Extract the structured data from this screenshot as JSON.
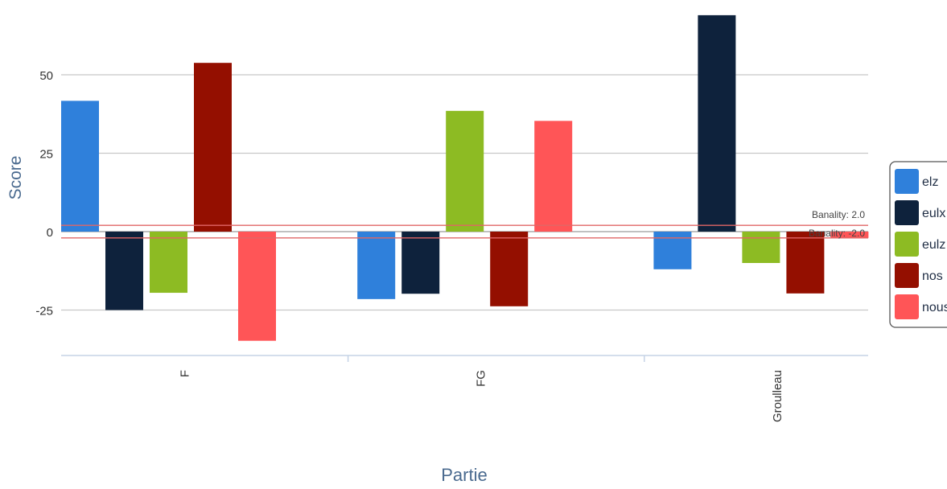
{
  "chart_data": {
    "type": "bar",
    "title": "",
    "xlabel": "Partie",
    "ylabel": "Score",
    "categories": [
      "F",
      "FG",
      "Groulleau"
    ],
    "yticks": [
      "50",
      "25",
      "0",
      "-25"
    ],
    "ylim": [
      -40,
      70
    ],
    "grid": true,
    "legend_position": "right",
    "series": [
      {
        "name": "elz",
        "color": "#2F80DB",
        "values": [
          41.7,
          -21.5,
          -12.0
        ]
      },
      {
        "name": "eulx",
        "color": "#0E223C",
        "values": [
          -25.0,
          -19.8,
          69.0
        ]
      },
      {
        "name": "eulz",
        "color": "#8DBB23",
        "values": [
          -19.5,
          38.5,
          -10.0
        ]
      },
      {
        "name": "nos",
        "color": "#940F00",
        "values": [
          53.8,
          -23.8,
          -19.7
        ]
      },
      {
        "name": "nous",
        "color": "#FF5557",
        "values": [
          -34.8,
          35.3,
          -2.0
        ]
      }
    ],
    "annotations": [
      {
        "label": "Banality: 2.0",
        "value": 2.0,
        "color": "#E06666"
      },
      {
        "label": "Banality: -2.0",
        "value": -2.0,
        "color": "#E06666"
      }
    ]
  }
}
